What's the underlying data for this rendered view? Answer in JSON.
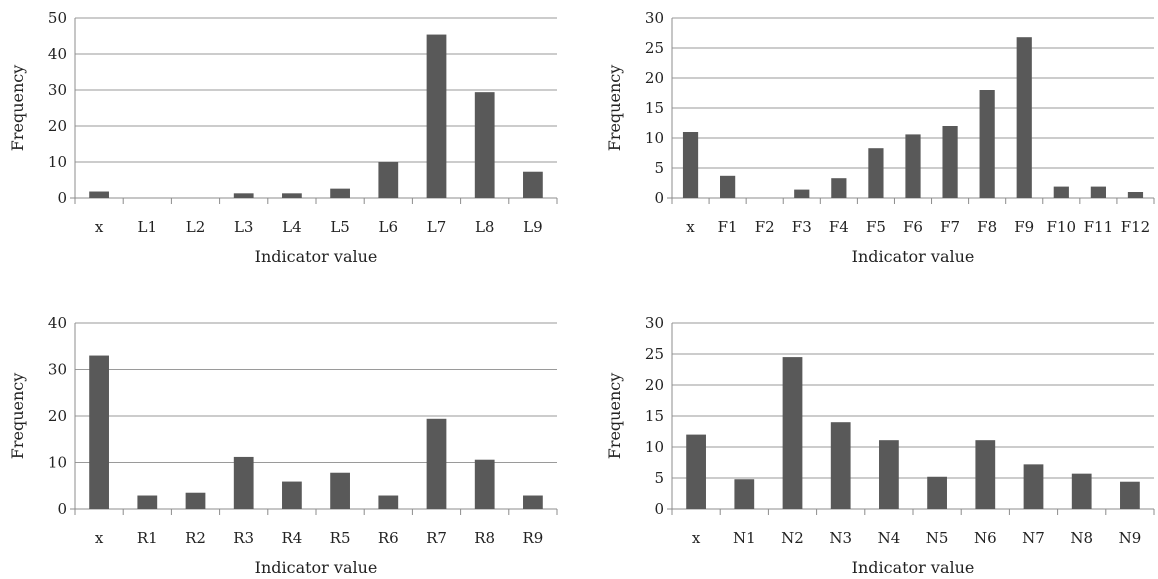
{
  "chart_data": [
    {
      "type": "bar",
      "xlabel": "Indicator value",
      "ylabel": "Frequency",
      "ylim": [
        0,
        50
      ],
      "yticks": [
        0,
        10,
        20,
        30,
        40,
        50
      ],
      "categories": [
        "x",
        "L1",
        "L2",
        "L3",
        "L4",
        "L5",
        "L6",
        "L7",
        "L8",
        "L9"
      ],
      "values": [
        1.8,
        0,
        0,
        1.3,
        1.3,
        2.6,
        10,
        45.4,
        29.4,
        7.3
      ],
      "grid": true,
      "bar_color": "#595959"
    },
    {
      "type": "bar",
      "xlabel": "Indicator value",
      "ylabel": "Frequency",
      "ylim": [
        0,
        30
      ],
      "yticks": [
        0,
        5,
        10,
        15,
        20,
        25,
        30
      ],
      "categories": [
        "x",
        "F1",
        "F2",
        "F3",
        "F4",
        "F5",
        "F6",
        "F7",
        "F8",
        "F9",
        "F10",
        "F11",
        "F12"
      ],
      "values": [
        11,
        3.7,
        0,
        1.4,
        3.3,
        8.3,
        10.6,
        12,
        18,
        26.8,
        1.9,
        1.9,
        1
      ],
      "grid": true,
      "bar_color": "#595959"
    },
    {
      "type": "bar",
      "xlabel": "Indicator value",
      "ylabel": "Frequency",
      "ylim": [
        0,
        40
      ],
      "yticks": [
        0,
        10,
        20,
        30,
        40
      ],
      "categories": [
        "x",
        "R1",
        "R2",
        "R3",
        "R4",
        "R5",
        "R6",
        "R7",
        "R8",
        "R9"
      ],
      "values": [
        33,
        2.9,
        3.5,
        11.2,
        5.9,
        7.8,
        2.9,
        19.4,
        10.6,
        2.9
      ],
      "grid": true,
      "bar_color": "#595959"
    },
    {
      "type": "bar",
      "xlabel": "Indicator value",
      "ylabel": "Frequency",
      "ylim": [
        0,
        30
      ],
      "yticks": [
        0,
        5,
        10,
        15,
        20,
        25,
        30
      ],
      "categories": [
        "x",
        "N1",
        "N2",
        "N3",
        "N4",
        "N5",
        "N6",
        "N7",
        "N8",
        "N9"
      ],
      "values": [
        12,
        4.8,
        24.5,
        14,
        11.1,
        5.2,
        11.1,
        7.2,
        5.7,
        4.4
      ],
      "grid": true,
      "bar_color": "#595959"
    }
  ]
}
